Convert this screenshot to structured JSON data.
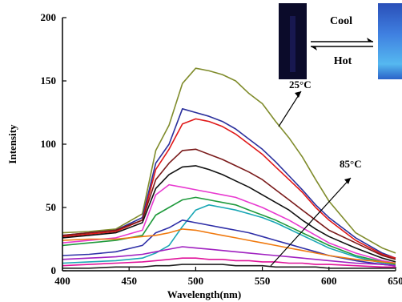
{
  "chart_data": {
    "type": "line",
    "title": "",
    "xlabel": "Wavelength(nm)",
    "ylabel": "Intensity",
    "xlim": [
      400,
      650
    ],
    "ylim": [
      0,
      200
    ],
    "xticks": [
      "400",
      "450",
      "500",
      "550",
      "600",
      "650"
    ],
    "yticks": [
      "0",
      "50",
      "100",
      "150",
      "200"
    ],
    "grid": false,
    "legend": "none",
    "series": [
      {
        "color": "#808c2c",
        "x": [
          400,
          420,
          440,
          460,
          470,
          480,
          490,
          500,
          510,
          520,
          530,
          540,
          550,
          560,
          570,
          580,
          590,
          600,
          620,
          640,
          650
        ],
        "y": [
          30,
          31,
          33,
          45,
          95,
          115,
          148,
          160,
          158,
          155,
          150,
          140,
          132,
          118,
          105,
          90,
          72,
          55,
          30,
          18,
          14
        ]
      },
      {
        "color": "#2a2f9c",
        "x": [
          400,
          420,
          440,
          460,
          470,
          480,
          490,
          500,
          510,
          520,
          530,
          540,
          550,
          560,
          570,
          580,
          590,
          600,
          620,
          640,
          650
        ],
        "y": [
          28,
          30,
          32,
          42,
          85,
          100,
          128,
          125,
          122,
          118,
          112,
          104,
          96,
          86,
          75,
          64,
          52,
          42,
          26,
          14,
          10
        ]
      },
      {
        "color": "#e01818",
        "x": [
          400,
          420,
          440,
          460,
          470,
          480,
          490,
          500,
          510,
          520,
          530,
          540,
          550,
          560,
          570,
          580,
          590,
          600,
          620,
          640,
          650
        ],
        "y": [
          27,
          29,
          31,
          40,
          80,
          96,
          116,
          120,
          118,
          114,
          108,
          100,
          92,
          82,
          72,
          62,
          50,
          40,
          24,
          13,
          10
        ]
      },
      {
        "color": "#7a1a1a",
        "x": [
          400,
          420,
          440,
          460,
          470,
          480,
          490,
          500,
          510,
          520,
          530,
          540,
          550,
          560,
          570,
          580,
          590,
          600,
          620,
          640,
          650
        ],
        "y": [
          28,
          30,
          32,
          40,
          72,
          85,
          95,
          96,
          92,
          88,
          83,
          78,
          72,
          64,
          56,
          48,
          40,
          32,
          22,
          12,
          9
        ]
      },
      {
        "color": "#111111",
        "x": [
          400,
          420,
          440,
          460,
          470,
          480,
          490,
          500,
          510,
          520,
          530,
          540,
          550,
          560,
          570,
          580,
          590,
          600,
          620,
          640,
          650
        ],
        "y": [
          26,
          28,
          30,
          38,
          65,
          76,
          82,
          83,
          80,
          76,
          71,
          66,
          60,
          54,
          48,
          40,
          33,
          27,
          18,
          10,
          7
        ]
      },
      {
        "color": "#e83ad0",
        "x": [
          400,
          420,
          440,
          460,
          470,
          480,
          490,
          500,
          510,
          520,
          530,
          540,
          550,
          560,
          570,
          580,
          590,
          600,
          620,
          640,
          650
        ],
        "y": [
          22,
          24,
          26,
          32,
          60,
          68,
          66,
          64,
          62,
          60,
          58,
          54,
          50,
          45,
          40,
          34,
          28,
          22,
          14,
          8,
          6
        ]
      },
      {
        "color": "#1f9a3c",
        "x": [
          400,
          420,
          440,
          460,
          470,
          480,
          490,
          500,
          510,
          520,
          530,
          540,
          550,
          560,
          570,
          580,
          590,
          600,
          620,
          640,
          650
        ],
        "y": [
          20,
          22,
          24,
          28,
          44,
          50,
          56,
          58,
          56,
          54,
          52,
          48,
          44,
          40,
          35,
          30,
          25,
          20,
          12,
          7,
          5
        ]
      },
      {
        "color": "#1aa7b5",
        "x": [
          400,
          420,
          440,
          460,
          470,
          480,
          490,
          500,
          510,
          520,
          530,
          540,
          550,
          560,
          570,
          580,
          590,
          600,
          620,
          640,
          650
        ],
        "y": [
          6,
          7,
          8,
          10,
          14,
          20,
          35,
          48,
          52,
          50,
          48,
          45,
          42,
          38,
          33,
          28,
          23,
          18,
          11,
          6,
          4
        ]
      },
      {
        "color": "#3030a8",
        "x": [
          400,
          420,
          440,
          460,
          470,
          480,
          490,
          500,
          510,
          520,
          530,
          540,
          550,
          560,
          570,
          580,
          590,
          600,
          620,
          640,
          650
        ],
        "y": [
          12,
          13,
          15,
          20,
          30,
          34,
          40,
          38,
          36,
          34,
          32,
          30,
          27,
          24,
          21,
          18,
          15,
          12,
          8,
          5,
          4
        ]
      },
      {
        "color": "#f07a10",
        "x": [
          400,
          420,
          440,
          460,
          470,
          480,
          490,
          500,
          510,
          520,
          530,
          540,
          550,
          560,
          570,
          580,
          590,
          600,
          620,
          640,
          650
        ],
        "y": [
          24,
          25,
          25,
          27,
          28,
          30,
          33,
          32,
          30,
          28,
          26,
          24,
          22,
          20,
          18,
          16,
          14,
          12,
          9,
          7,
          6
        ]
      },
      {
        "color": "#a020c0",
        "x": [
          400,
          420,
          440,
          460,
          470,
          480,
          490,
          500,
          510,
          520,
          530,
          540,
          550,
          560,
          570,
          580,
          590,
          600,
          620,
          640,
          650
        ],
        "y": [
          9,
          10,
          11,
          13,
          15,
          17,
          19,
          18,
          17,
          16,
          15,
          14,
          13,
          12,
          11,
          10,
          9,
          8,
          6,
          5,
          4
        ]
      },
      {
        "color": "#e0139a",
        "x": [
          400,
          420,
          440,
          460,
          470,
          480,
          490,
          500,
          510,
          520,
          530,
          540,
          550,
          560,
          570,
          580,
          590,
          600,
          620,
          640,
          650
        ],
        "y": [
          4,
          5,
          6,
          7,
          8,
          9,
          10,
          10,
          9,
          9,
          8,
          8,
          7,
          7,
          6,
          6,
          5,
          5,
          4,
          3,
          3
        ]
      },
      {
        "color": "#202020",
        "x": [
          400,
          420,
          440,
          460,
          470,
          480,
          490,
          500,
          510,
          520,
          530,
          540,
          550,
          560,
          570,
          580,
          590,
          600,
          620,
          640,
          650
        ],
        "y": [
          2,
          2,
          3,
          3,
          4,
          4,
          5,
          5,
          5,
          5,
          4,
          4,
          4,
          3,
          3,
          3,
          3,
          2,
          2,
          2,
          2
        ]
      }
    ],
    "annotations": [
      "25°C",
      "85°C"
    ]
  },
  "inset": {
    "cool_label": "Cool",
    "hot_label": "Hot"
  }
}
